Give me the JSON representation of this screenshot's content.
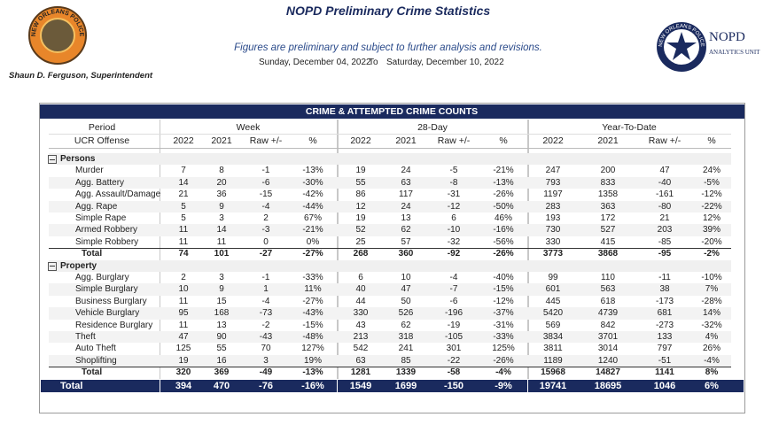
{
  "header": {
    "title": "NOPD Preliminary Crime Statistics",
    "subtitle": "Figures are preliminary and subject to further analysis and revisions.",
    "start_date": "Sunday, December 04, 2022",
    "date_separator": "To",
    "end_date": "Saturday, December 10, 2022",
    "superintendent": "Shaun D. Ferguson, Superintendent",
    "left_logo_text": "NEW ORLEANS POLICE",
    "right_logo_ring": "NEW ORLEANS POLICE",
    "right_logo_title": "NOPD",
    "right_logo_subtitle": "ANALYTICS UNIT"
  },
  "table": {
    "title": "CRIME & ATTEMPTED CRIME COUNTS",
    "period_label": "Period",
    "offense_label": "UCR Offense",
    "groups": [
      "Week",
      "28-Day",
      "Year-To-Date"
    ],
    "columns": [
      "2022",
      "2021",
      "Raw +/-",
      "%",
      "2022",
      "2021",
      "Raw +/-",
      "%",
      "2022",
      "2021",
      "Raw +/-",
      "%"
    ],
    "sections": [
      {
        "name": "Persons",
        "rows": [
          {
            "offense": "Murder",
            "values": [
              "7",
              "8",
              "-1",
              "-13%",
              "19",
              "24",
              "-5",
              "-21%",
              "247",
              "200",
              "47",
              "24%"
            ]
          },
          {
            "offense": "Agg. Battery",
            "values": [
              "14",
              "20",
              "-6",
              "-30%",
              "55",
              "63",
              "-8",
              "-13%",
              "793",
              "833",
              "-40",
              "-5%"
            ]
          },
          {
            "offense": "Agg. Assault/Damage",
            "values": [
              "21",
              "36",
              "-15",
              "-42%",
              "86",
              "117",
              "-31",
              "-26%",
              "1197",
              "1358",
              "-161",
              "-12%"
            ]
          },
          {
            "offense": "Agg. Rape",
            "values": [
              "5",
              "9",
              "-4",
              "-44%",
              "12",
              "24",
              "-12",
              "-50%",
              "283",
              "363",
              "-80",
              "-22%"
            ]
          },
          {
            "offense": "Simple Rape",
            "values": [
              "5",
              "3",
              "2",
              "67%",
              "19",
              "13",
              "6",
              "46%",
              "193",
              "172",
              "21",
              "12%"
            ]
          },
          {
            "offense": "Armed Robbery",
            "values": [
              "11",
              "14",
              "-3",
              "-21%",
              "52",
              "62",
              "-10",
              "-16%",
              "730",
              "527",
              "203",
              "39%"
            ]
          },
          {
            "offense": "Simple Robbery",
            "values": [
              "11",
              "11",
              "0",
              "0%",
              "25",
              "57",
              "-32",
              "-56%",
              "330",
              "415",
              "-85",
              "-20%"
            ]
          }
        ],
        "total": {
          "label": "Total",
          "values": [
            "74",
            "101",
            "-27",
            "-27%",
            "268",
            "360",
            "-92",
            "-26%",
            "3773",
            "3868",
            "-95",
            "-2%"
          ]
        }
      },
      {
        "name": "Property",
        "rows": [
          {
            "offense": "Agg. Burglary",
            "values": [
              "2",
              "3",
              "-1",
              "-33%",
              "6",
              "10",
              "-4",
              "-40%",
              "99",
              "110",
              "-11",
              "-10%"
            ]
          },
          {
            "offense": "Simple Burglary",
            "values": [
              "10",
              "9",
              "1",
              "11%",
              "40",
              "47",
              "-7",
              "-15%",
              "601",
              "563",
              "38",
              "7%"
            ]
          },
          {
            "offense": "Business Burglary",
            "values": [
              "11",
              "15",
              "-4",
              "-27%",
              "44",
              "50",
              "-6",
              "-12%",
              "445",
              "618",
              "-173",
              "-28%"
            ]
          },
          {
            "offense": "Vehicle Burglary",
            "values": [
              "95",
              "168",
              "-73",
              "-43%",
              "330",
              "526",
              "-196",
              "-37%",
              "5420",
              "4739",
              "681",
              "14%"
            ]
          },
          {
            "offense": "Residence Burglary",
            "values": [
              "11",
              "13",
              "-2",
              "-15%",
              "43",
              "62",
              "-19",
              "-31%",
              "569",
              "842",
              "-273",
              "-32%"
            ]
          },
          {
            "offense": "Theft",
            "values": [
              "47",
              "90",
              "-43",
              "-48%",
              "213",
              "318",
              "-105",
              "-33%",
              "3834",
              "3701",
              "133",
              "4%"
            ]
          },
          {
            "offense": "Auto Theft",
            "values": [
              "125",
              "55",
              "70",
              "127%",
              "542",
              "241",
              "301",
              "125%",
              "3811",
              "3014",
              "797",
              "26%"
            ]
          },
          {
            "offense": "Shoplifting",
            "values": [
              "19",
              "16",
              "3",
              "19%",
              "63",
              "85",
              "-22",
              "-26%",
              "1189",
              "1240",
              "-51",
              "-4%"
            ]
          }
        ],
        "total": {
          "label": "Total",
          "values": [
            "320",
            "369",
            "-49",
            "-13%",
            "1281",
            "1339",
            "-58",
            "-4%",
            "15968",
            "14827",
            "1141",
            "8%"
          ]
        }
      }
    ],
    "grand_total": {
      "label": "Total",
      "values": [
        "394",
        "470",
        "-76",
        "-16%",
        "1549",
        "1699",
        "-150",
        "-9%",
        "19741",
        "18695",
        "1046",
        "6%"
      ]
    }
  }
}
